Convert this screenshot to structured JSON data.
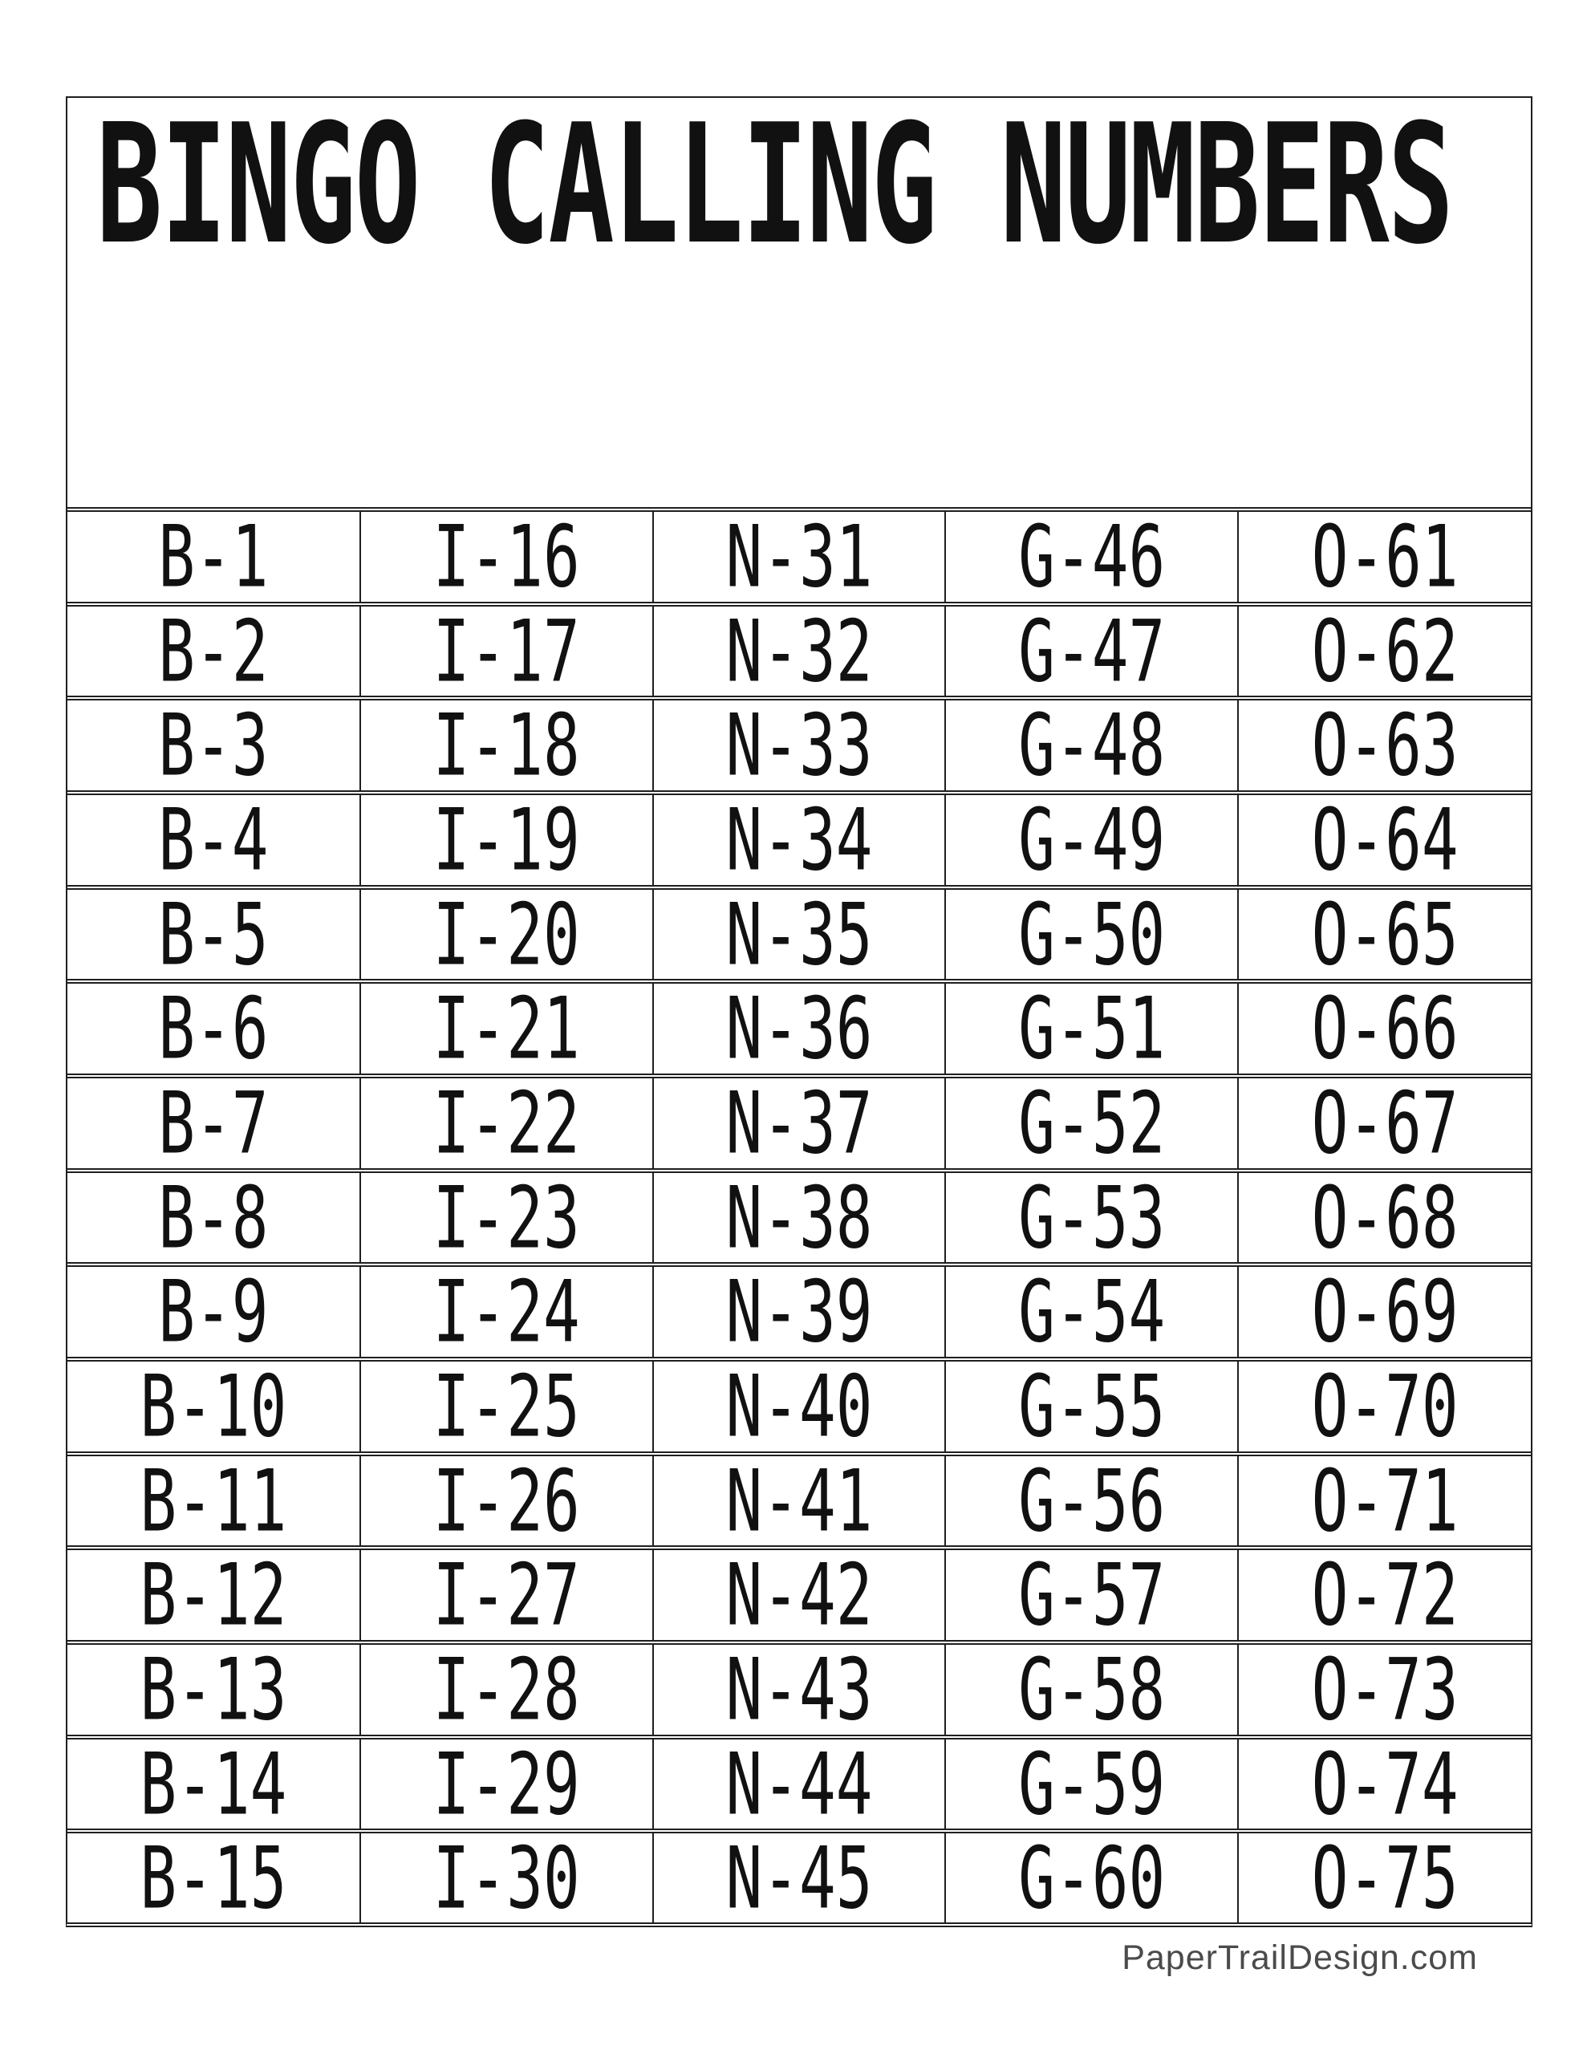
{
  "document": {
    "title": "BINGO CALLING NUMBERS",
    "footer": "PaperTrailDesign.com"
  },
  "colors": {
    "background": "#ffffff",
    "ink": "#111111",
    "border": "#1f1f1f",
    "footer_text": "#4b4b4b"
  },
  "table": {
    "columns": [
      "B",
      "I",
      "N",
      "G",
      "O"
    ],
    "rows": [
      [
        "B-1",
        "I-16",
        "N-31",
        "G-46",
        "O-61"
      ],
      [
        "B-2",
        "I-17",
        "N-32",
        "G-47",
        "O-62"
      ],
      [
        "B-3",
        "I-18",
        "N-33",
        "G-48",
        "O-63"
      ],
      [
        "B-4",
        "I-19",
        "N-34",
        "G-49",
        "O-64"
      ],
      [
        "B-5",
        "I-20",
        "N-35",
        "G-50",
        "O-65"
      ],
      [
        "B-6",
        "I-21",
        "N-36",
        "G-51",
        "O-66"
      ],
      [
        "B-7",
        "I-22",
        "N-37",
        "G-52",
        "O-67"
      ],
      [
        "B-8",
        "I-23",
        "N-38",
        "G-53",
        "O-68"
      ],
      [
        "B-9",
        "I-24",
        "N-39",
        "G-54",
        "O-69"
      ],
      [
        "B-10",
        "I-25",
        "N-40",
        "G-55",
        "O-70"
      ],
      [
        "B-11",
        "I-26",
        "N-41",
        "G-56",
        "O-71"
      ],
      [
        "B-12",
        "I-27",
        "N-42",
        "G-57",
        "O-72"
      ],
      [
        "B-13",
        "I-28",
        "N-43",
        "G-58",
        "O-73"
      ],
      [
        "B-14",
        "I-29",
        "N-44",
        "G-59",
        "O-74"
      ],
      [
        "B-15",
        "I-30",
        "N-45",
        "G-60",
        "O-75"
      ]
    ]
  }
}
